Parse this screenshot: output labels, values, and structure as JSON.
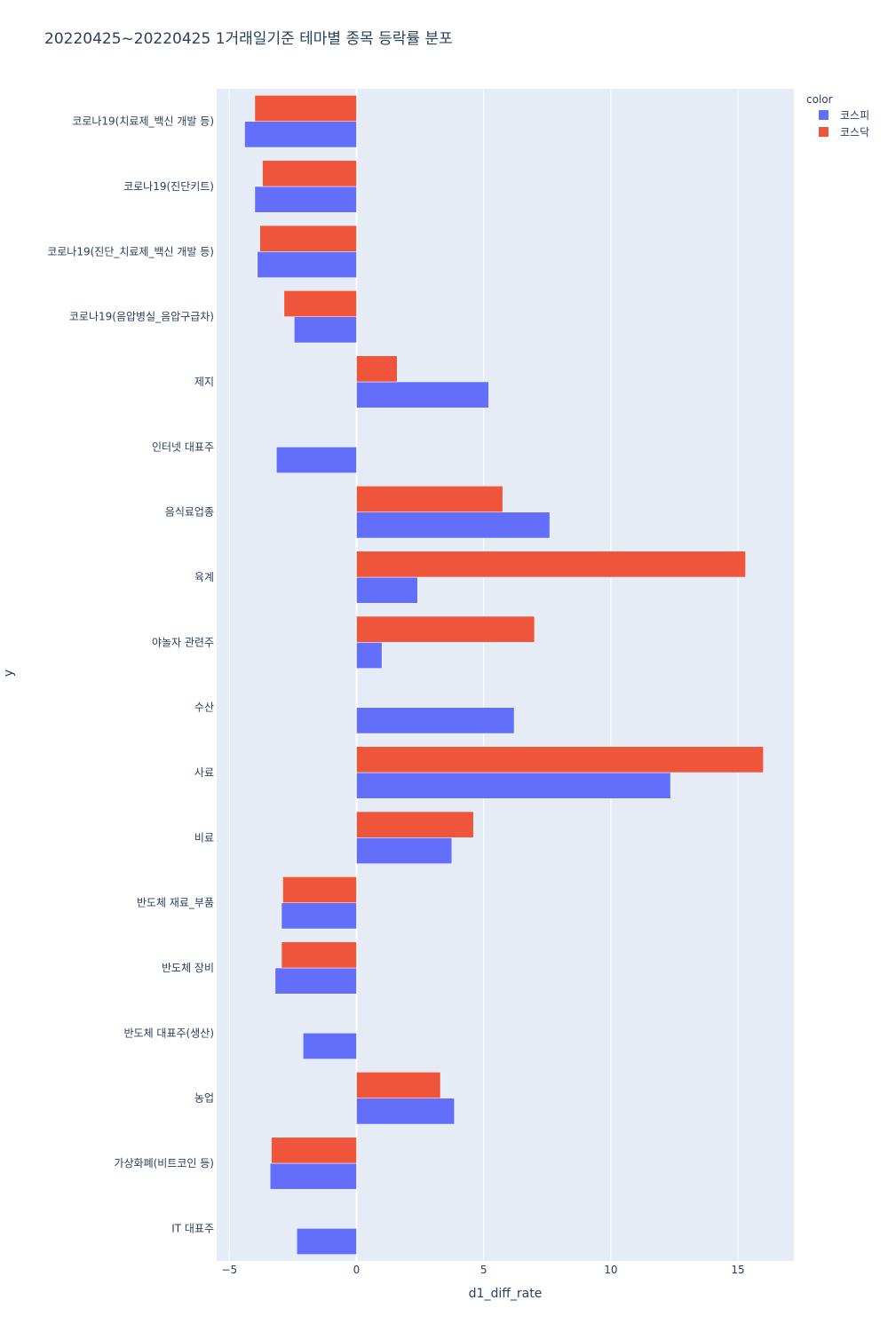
{
  "chart_data": {
    "type": "bar",
    "orientation": "horizontal",
    "barmode": "group",
    "title": "20220425~20220425 1거래일기준 테마별 종목 등락률 분포",
    "xlabel": "d1_diff_rate",
    "ylabel": "y",
    "xlim": [
      -5.5,
      17.2
    ],
    "xticks": [
      -5,
      0,
      5,
      10,
      15
    ],
    "grid": true,
    "legend": {
      "title": "color",
      "placement": "top-right"
    },
    "categories": [
      "코로나19(치료제_백신 개발 등)",
      "코로나19(진단키트)",
      "코로나19(진단_치료제_백신 개발 등)",
      "코로나19(음압병실_음압구급차)",
      "제지",
      "인터넷 대표주",
      "음식료업종",
      "육계",
      "야놀자 관련주",
      "수산",
      "사료",
      "비료",
      "반도체 재료_부품",
      "반도체 장비",
      "반도체 대표주(생산)",
      "농업",
      "가상화폐(비트코인 등)",
      "IT 대표주"
    ],
    "series": [
      {
        "name": "코스피",
        "color": "#636efa",
        "values": [
          -4.4,
          -4.0,
          -3.9,
          -2.45,
          5.2,
          -3.15,
          7.6,
          2.4,
          1.0,
          6.2,
          12.35,
          3.75,
          -2.95,
          -3.2,
          -2.1,
          3.85,
          -3.4,
          -2.35
        ]
      },
      {
        "name": "코스닥",
        "color": "#ef553b",
        "values": [
          -4.0,
          -3.7,
          -3.8,
          -2.85,
          1.6,
          null,
          5.75,
          15.3,
          7.0,
          null,
          16.0,
          4.6,
          -2.9,
          -2.95,
          null,
          3.3,
          -3.35,
          null
        ]
      }
    ]
  }
}
